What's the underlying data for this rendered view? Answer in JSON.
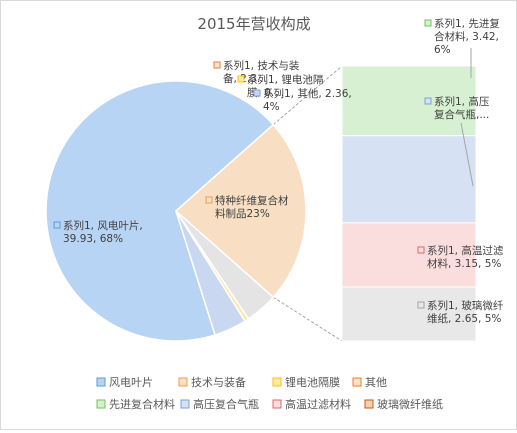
{
  "chart_data": {
    "type": "pie",
    "subtype": "pie-of-pie",
    "title": "2015年营收构成",
    "series_name": "系列1",
    "unit_note": "",
    "legend_position": "bottom",
    "slices": [
      {
        "category": "风电叶片",
        "value": 39.93,
        "percent": "68%",
        "color": "#b8d4f4",
        "stroke": "#5b9bd5",
        "label_lines": [
          "系列1, 风电叶片,",
          "39.93, 68%"
        ]
      },
      {
        "category": "特种纤维复合材料制品",
        "value": 13.5,
        "percent": "23%",
        "color": "#f8dfc3",
        "stroke": "#ed9d4f",
        "label_lines": [
          "特种纤维复合材",
          "料制品23%"
        ],
        "is_aggregate": true
      },
      {
        "category": "技术与装备",
        "value": 2.36,
        "percent": "4%",
        "color": "#e4e4e4",
        "stroke": "#a5a5a5",
        "label_lines": [
          "系列1, 技术与装",
          "备, 2.3..."
        ]
      },
      {
        "category": "锂电池隔膜",
        "value": 0.3,
        "percent": "1%",
        "color": "#fde9a8",
        "stroke": "#ffc000",
        "label_lines": [
          "系列1, 锂电池隔",
          "膜, 0...."
        ]
      },
      {
        "category": "其他",
        "value": 2.36,
        "percent": "4%",
        "color": "#c9d7f0",
        "stroke": "#7da0db",
        "label_lines": [
          "系列1, 其他, 2.36,",
          "4%"
        ]
      }
    ],
    "secondary": [
      {
        "category": "先进复合材料",
        "value": 3.42,
        "percent": "6%",
        "color": "#d7f0d2",
        "stroke": "#70c25a",
        "label_lines": [
          "系列1, 先进复",
          "合材料, 3.42,",
          "6%"
        ]
      },
      {
        "category": "高压复合气瓶",
        "value": 4.28,
        "percent": "7%",
        "color": "#d6e2f3",
        "stroke": "#7da0db",
        "label_lines": [
          "系列1, 高压",
          "复合气瓶,..."
        ]
      },
      {
        "category": "高温过滤材料",
        "value": 3.15,
        "percent": "5%",
        "color": "#fadede",
        "stroke": "#e36464",
        "label_lines": [
          "系列1, 高温过滤",
          "材料, 3.15, 5%"
        ]
      },
      {
        "category": "玻璃微纤维纸",
        "value": 2.65,
        "percent": "5%",
        "color": "#e8e8e8",
        "stroke": "#a5a5a5",
        "label_lines": [
          "系列1, 玻璃微纤",
          "维纸, 2.65, 5%"
        ]
      }
    ],
    "legend": [
      {
        "label": "风电叶片",
        "color": "#b8d4f4",
        "stroke": "#5b9bd5"
      },
      {
        "label": "技术与装备",
        "color": "#f8dfc3",
        "stroke": "#ed9d4f"
      },
      {
        "label": "锂电池隔膜",
        "color": "#fde9a8",
        "stroke": "#ffc000"
      },
      {
        "label": "其他",
        "color": "#fbe3c7",
        "stroke": "#ed7d31"
      },
      {
        "label": "先进复合材料",
        "color": "#d7f0d2",
        "stroke": "#70c25a"
      },
      {
        "label": "高压复合气瓶",
        "color": "#d6e2f3",
        "stroke": "#7da0db"
      },
      {
        "label": "高温过滤材料",
        "color": "#fadede",
        "stroke": "#e36464"
      },
      {
        "label": "玻璃微纤维纸",
        "color": "#f5d0b0",
        "stroke": "#c55a11"
      }
    ]
  }
}
